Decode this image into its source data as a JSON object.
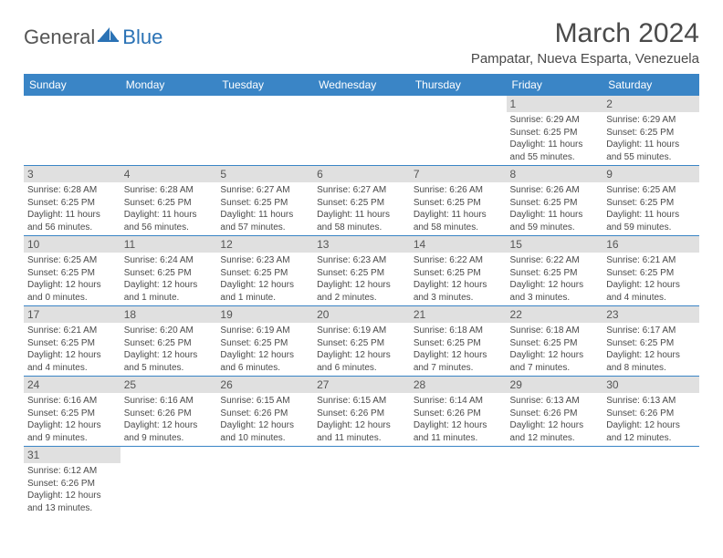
{
  "logo": {
    "general": "General",
    "blue": "Blue"
  },
  "title": "March 2024",
  "subtitle": "Pampatar, Nueva Esparta, Venezuela",
  "colors": {
    "header_bg": "#3a85c6",
    "header_text": "#ffffff",
    "daynum_bg": "#e0e0e0",
    "text": "#4a4a4a",
    "border": "#3a85c6",
    "logo_blue": "#2a72b5"
  },
  "dayNames": [
    "Sunday",
    "Monday",
    "Tuesday",
    "Wednesday",
    "Thursday",
    "Friday",
    "Saturday"
  ],
  "firstWeekday": 5,
  "days": [
    {
      "n": 1,
      "sr": "6:29 AM",
      "ss": "6:25 PM",
      "dl": "11 hours and 55 minutes."
    },
    {
      "n": 2,
      "sr": "6:29 AM",
      "ss": "6:25 PM",
      "dl": "11 hours and 55 minutes."
    },
    {
      "n": 3,
      "sr": "6:28 AM",
      "ss": "6:25 PM",
      "dl": "11 hours and 56 minutes."
    },
    {
      "n": 4,
      "sr": "6:28 AM",
      "ss": "6:25 PM",
      "dl": "11 hours and 56 minutes."
    },
    {
      "n": 5,
      "sr": "6:27 AM",
      "ss": "6:25 PM",
      "dl": "11 hours and 57 minutes."
    },
    {
      "n": 6,
      "sr": "6:27 AM",
      "ss": "6:25 PM",
      "dl": "11 hours and 58 minutes."
    },
    {
      "n": 7,
      "sr": "6:26 AM",
      "ss": "6:25 PM",
      "dl": "11 hours and 58 minutes."
    },
    {
      "n": 8,
      "sr": "6:26 AM",
      "ss": "6:25 PM",
      "dl": "11 hours and 59 minutes."
    },
    {
      "n": 9,
      "sr": "6:25 AM",
      "ss": "6:25 PM",
      "dl": "11 hours and 59 minutes."
    },
    {
      "n": 10,
      "sr": "6:25 AM",
      "ss": "6:25 PM",
      "dl": "12 hours and 0 minutes."
    },
    {
      "n": 11,
      "sr": "6:24 AM",
      "ss": "6:25 PM",
      "dl": "12 hours and 1 minute."
    },
    {
      "n": 12,
      "sr": "6:23 AM",
      "ss": "6:25 PM",
      "dl": "12 hours and 1 minute."
    },
    {
      "n": 13,
      "sr": "6:23 AM",
      "ss": "6:25 PM",
      "dl": "12 hours and 2 minutes."
    },
    {
      "n": 14,
      "sr": "6:22 AM",
      "ss": "6:25 PM",
      "dl": "12 hours and 3 minutes."
    },
    {
      "n": 15,
      "sr": "6:22 AM",
      "ss": "6:25 PM",
      "dl": "12 hours and 3 minutes."
    },
    {
      "n": 16,
      "sr": "6:21 AM",
      "ss": "6:25 PM",
      "dl": "12 hours and 4 minutes."
    },
    {
      "n": 17,
      "sr": "6:21 AM",
      "ss": "6:25 PM",
      "dl": "12 hours and 4 minutes."
    },
    {
      "n": 18,
      "sr": "6:20 AM",
      "ss": "6:25 PM",
      "dl": "12 hours and 5 minutes."
    },
    {
      "n": 19,
      "sr": "6:19 AM",
      "ss": "6:25 PM",
      "dl": "12 hours and 6 minutes."
    },
    {
      "n": 20,
      "sr": "6:19 AM",
      "ss": "6:25 PM",
      "dl": "12 hours and 6 minutes."
    },
    {
      "n": 21,
      "sr": "6:18 AM",
      "ss": "6:25 PM",
      "dl": "12 hours and 7 minutes."
    },
    {
      "n": 22,
      "sr": "6:18 AM",
      "ss": "6:25 PM",
      "dl": "12 hours and 7 minutes."
    },
    {
      "n": 23,
      "sr": "6:17 AM",
      "ss": "6:25 PM",
      "dl": "12 hours and 8 minutes."
    },
    {
      "n": 24,
      "sr": "6:16 AM",
      "ss": "6:25 PM",
      "dl": "12 hours and 9 minutes."
    },
    {
      "n": 25,
      "sr": "6:16 AM",
      "ss": "6:26 PM",
      "dl": "12 hours and 9 minutes."
    },
    {
      "n": 26,
      "sr": "6:15 AM",
      "ss": "6:26 PM",
      "dl": "12 hours and 10 minutes."
    },
    {
      "n": 27,
      "sr": "6:15 AM",
      "ss": "6:26 PM",
      "dl": "12 hours and 11 minutes."
    },
    {
      "n": 28,
      "sr": "6:14 AM",
      "ss": "6:26 PM",
      "dl": "12 hours and 11 minutes."
    },
    {
      "n": 29,
      "sr": "6:13 AM",
      "ss": "6:26 PM",
      "dl": "12 hours and 12 minutes."
    },
    {
      "n": 30,
      "sr": "6:13 AM",
      "ss": "6:26 PM",
      "dl": "12 hours and 12 minutes."
    },
    {
      "n": 31,
      "sr": "6:12 AM",
      "ss": "6:26 PM",
      "dl": "12 hours and 13 minutes."
    }
  ],
  "labels": {
    "sunrise": "Sunrise:",
    "sunset": "Sunset:",
    "daylight": "Daylight:"
  }
}
